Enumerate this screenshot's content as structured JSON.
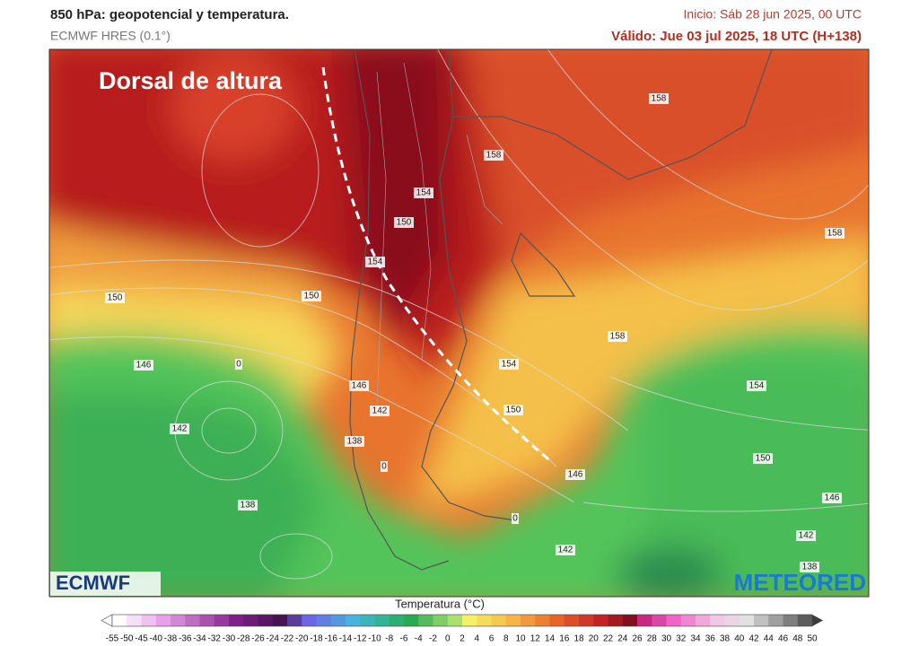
{
  "header": {
    "title": "850 hPa: geopotencial y temperatura.",
    "model": "ECMWF HRES (0.1°)",
    "init": "Inicio: Sáb 28 jun 2025, 00 UTC",
    "valid": "Válido: Jue 03 jul 2025, 18 UTC (H+138)"
  },
  "map": {
    "annotation": "Dorsal de altura",
    "contour_labels": [
      158,
      158,
      154,
      150,
      154,
      150,
      150,
      158,
      158,
      154,
      146,
      146,
      142,
      150,
      142,
      138,
      154,
      150,
      146,
      146,
      138,
      142,
      142,
      138,
      0,
      0,
      0
    ],
    "logos": [
      "ECMWF",
      "METEORED"
    ]
  },
  "colorbar": {
    "title": "Temperatura (°C)",
    "ticks": [
      -55,
      -50,
      -45,
      -40,
      -38,
      -36,
      -34,
      -32,
      -30,
      -28,
      -26,
      -24,
      -22,
      -20,
      -18,
      -16,
      -14,
      -12,
      -10,
      -8,
      -6,
      -4,
      -2,
      0,
      2,
      4,
      6,
      8,
      10,
      12,
      14,
      16,
      18,
      20,
      22,
      24,
      26,
      28,
      30,
      32,
      34,
      36,
      38,
      40,
      42,
      44,
      46,
      48,
      50
    ]
  }
}
